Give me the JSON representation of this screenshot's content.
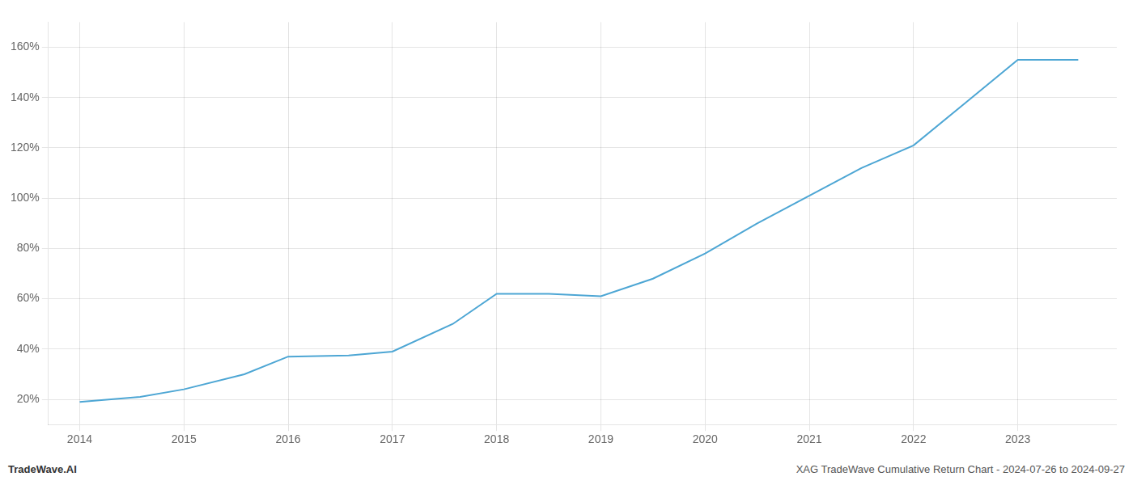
{
  "chart_data": {
    "type": "line",
    "x": [
      2014,
      2014.58,
      2015,
      2015.58,
      2016,
      2016.58,
      2017,
      2017.58,
      2018,
      2018.5,
      2019,
      2019.5,
      2020,
      2020.5,
      2021,
      2021.5,
      2022,
      2022.5,
      2023,
      2023.58
    ],
    "values": [
      19,
      21,
      24,
      30,
      37,
      37.5,
      39,
      50,
      62,
      62,
      61,
      68,
      78,
      90,
      101,
      112,
      121,
      138,
      155,
      155
    ],
    "color": "#4da6d4",
    "xlim": [
      2013.7,
      2023.95
    ],
    "xticks": [
      2014,
      2015,
      2016,
      2017,
      2018,
      2019,
      2020,
      2021,
      2022,
      2023
    ],
    "ylim": [
      10,
      170
    ],
    "yticks": [
      {
        "value": 20,
        "label": "20%"
      },
      {
        "value": 40,
        "label": "40%"
      },
      {
        "value": 60,
        "label": "60%"
      },
      {
        "value": 80,
        "label": "80%"
      },
      {
        "value": 100,
        "label": "100%"
      },
      {
        "value": 120,
        "label": "120%"
      },
      {
        "value": 140,
        "label": "140%"
      },
      {
        "value": 160,
        "label": "160%"
      }
    ],
    "grid": true,
    "annotations": [
      "TradeWave.AI",
      "XAG TradeWave Cumulative Return Chart - 2024-07-26 to 2024-09-27"
    ]
  }
}
